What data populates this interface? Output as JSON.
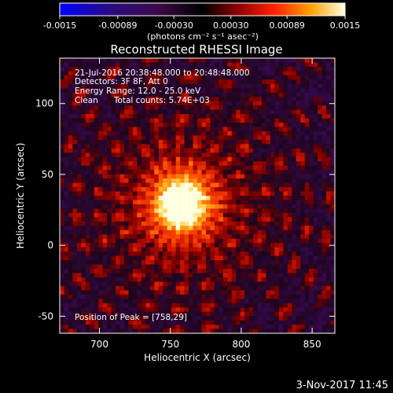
{
  "colorbar": {
    "tick_labels": [
      "-0.0015",
      "-0.00089",
      "-0.00030",
      "0.00030",
      "0.00089",
      "0.0015"
    ],
    "ticks": [
      -0.0015,
      -0.00089,
      -0.0003,
      0.0003,
      0.00089,
      0.0015
    ],
    "range": [
      -0.0015,
      0.0015
    ],
    "units_label": "(photons cm⁻² s⁻¹ asec⁻²)"
  },
  "chart_data": {
    "type": "heatmap",
    "title": "Reconstructed RHESSI Image",
    "xlabel": "Heliocentric X (arcsec)",
    "ylabel": "Heliocentric Y (arcsec)",
    "xlim": [
      672,
      866
    ],
    "ylim": [
      -62,
      132
    ],
    "xticks": [
      700,
      750,
      800,
      850
    ],
    "yticks": [
      -50,
      0,
      50,
      100
    ],
    "xtick_labels": [
      "700",
      "750",
      "800",
      "850"
    ],
    "ytick_labels": [
      "-50",
      "0",
      "50",
      "100"
    ],
    "peak": [
      758,
      29
    ],
    "colormap": "blue-purple-red-orange-yellow-white",
    "grid": false,
    "annotations": {
      "time_range": "21-Jul-2016 20:38:48.000 to 20:48:48.000",
      "detectors": "Detectors: 3F 8F, Att 0",
      "energy": "Energy Range: 12.0 - 25.0 keV",
      "method": "Clean      Total counts: 5.74E+03",
      "peak_label": "Position of Peak = [758,29]"
    }
  },
  "footer": {
    "timestamp": "3-Nov-2017 11:45"
  }
}
